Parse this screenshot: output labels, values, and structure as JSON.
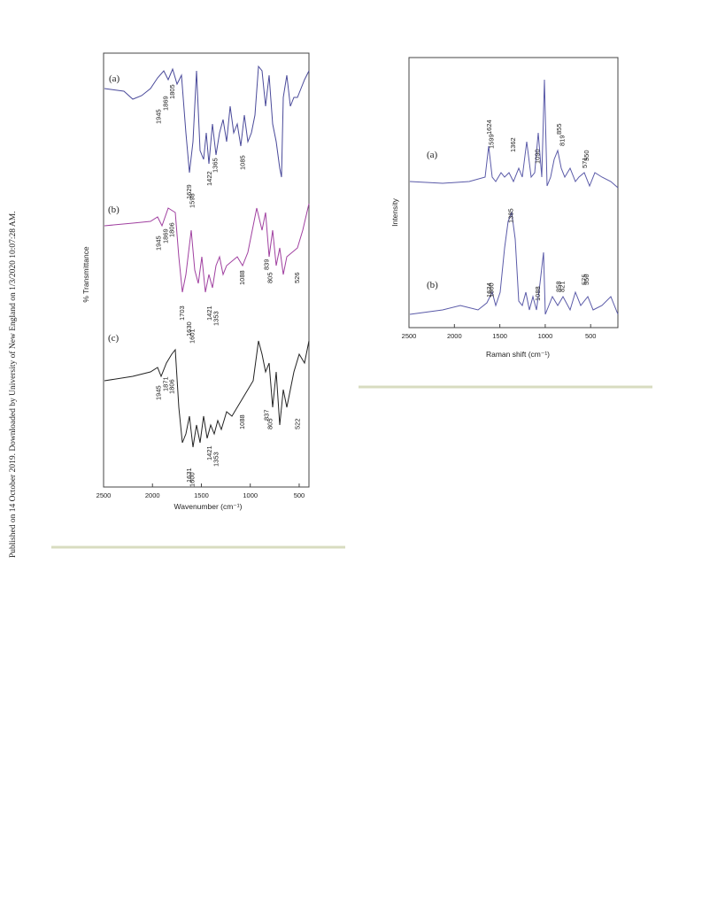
{
  "side_note": "Published on 14 October 2019. Downloaded by University of New England on 1/3/2020 10:07:28 AM.",
  "figures": [
    {
      "ylabel": "% Transmittance",
      "xlabel": "Wavenumber (cm⁻¹)",
      "xlim": [
        2500,
        400
      ],
      "xticks": [
        2500,
        2000,
        1500,
        1000,
        500
      ],
      "traces": [
        {
          "label": "(a)",
          "peaks": [
            1945,
            1869,
            1805,
            1629,
            1598,
            1422,
            1365,
            1085
          ]
        },
        {
          "label": "(b)",
          "peaks": [
            1945,
            1869,
            1806,
            1703,
            1630,
            1601,
            1421,
            1353,
            1088,
            839,
            805,
            526
          ]
        },
        {
          "label": "(c)",
          "peaks": [
            1945,
            1871,
            1806,
            1631,
            1600,
            1421,
            1353,
            1088,
            837,
            805,
            522
          ]
        }
      ]
    },
    {
      "ylabel": "Intensity",
      "xlabel": "Raman shift (cm⁻¹)",
      "xlim": [
        2500,
        200
      ],
      "xticks": [
        2500,
        2000,
        1500,
        1000,
        500
      ],
      "traces": [
        {
          "label": "(a)",
          "peaks": [
            1624,
            1599,
            1362,
            1090,
            855,
            819,
            571,
            550
          ]
        },
        {
          "label": "(b)",
          "peaks": [
            1385,
            1624,
            1600,
            1088,
            858,
            821,
            575,
            550
          ]
        }
      ]
    }
  ]
}
